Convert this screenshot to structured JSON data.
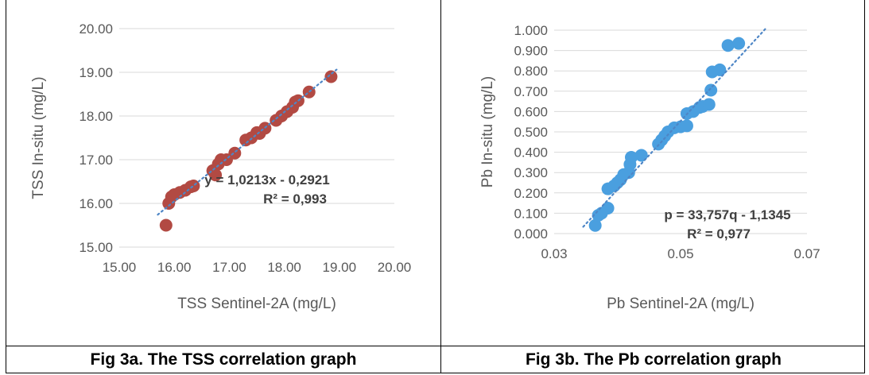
{
  "captions": {
    "a": "Fig 3a. The TSS correlation graph",
    "b": "Fig 3b. The Pb correlation graph"
  },
  "chart_data": [
    {
      "type": "scatter",
      "xlabel": "TSS Sentinel-2A (mg/L)",
      "ylabel": "TSS In-situ (mg/L)",
      "xlim": [
        15.0,
        20.0
      ],
      "ylim": [
        15.0,
        20.0
      ],
      "x_ticks": [
        "15.00",
        "16.00",
        "17.00",
        "18.00",
        "19.00",
        "20.00"
      ],
      "y_ticks": [
        "15.00",
        "16.00",
        "17.00",
        "18.00",
        "19.00",
        "20.00"
      ],
      "grid": "horizontal",
      "marker_color": "#b24a43",
      "trendline_color": "#4e86c6",
      "trendline": {
        "slope": 1.0213,
        "intercept": -0.2921,
        "x_range": [
          15.7,
          18.95
        ]
      },
      "equation_label": "y = 1,0213x - 0,2921",
      "r2_label": "R² = 0,993",
      "points": [
        {
          "x": 15.85,
          "y": 15.5
        },
        {
          "x": 15.9,
          "y": 16.0
        },
        {
          "x": 15.95,
          "y": 16.15
        },
        {
          "x": 16.0,
          "y": 16.2
        },
        {
          "x": 16.1,
          "y": 16.25
        },
        {
          "x": 16.2,
          "y": 16.3
        },
        {
          "x": 16.3,
          "y": 16.38
        },
        {
          "x": 16.35,
          "y": 16.4
        },
        {
          "x": 16.7,
          "y": 16.75
        },
        {
          "x": 16.75,
          "y": 16.65
        },
        {
          "x": 16.8,
          "y": 16.9
        },
        {
          "x": 16.85,
          "y": 17.0
        },
        {
          "x": 16.95,
          "y": 17.0
        },
        {
          "x": 17.1,
          "y": 17.15
        },
        {
          "x": 17.3,
          "y": 17.45
        },
        {
          "x": 17.4,
          "y": 17.5
        },
        {
          "x": 17.5,
          "y": 17.62
        },
        {
          "x": 17.55,
          "y": 17.6
        },
        {
          "x": 17.65,
          "y": 17.72
        },
        {
          "x": 17.85,
          "y": 17.9
        },
        {
          "x": 17.95,
          "y": 18.0
        },
        {
          "x": 18.05,
          "y": 18.1
        },
        {
          "x": 18.15,
          "y": 18.2
        },
        {
          "x": 18.2,
          "y": 18.32
        },
        {
          "x": 18.25,
          "y": 18.35
        },
        {
          "x": 18.45,
          "y": 18.55
        },
        {
          "x": 18.85,
          "y": 18.9
        }
      ]
    },
    {
      "type": "scatter",
      "xlabel": "Pb Sentinel-2A (mg/L)",
      "ylabel": "Pb In-situ (mg/L)",
      "xlim": [
        0.03,
        0.07
      ],
      "ylim": [
        0.0,
        1.0
      ],
      "x_ticks": [
        "0.03",
        "0.05",
        "0.07"
      ],
      "y_ticks": [
        "0.000",
        "0.100",
        "0.200",
        "0.300",
        "0.400",
        "0.500",
        "0.600",
        "0.700",
        "0.800",
        "0.900",
        "1.000"
      ],
      "grid": "horizontal",
      "marker_color": "#4a9fdf",
      "trendline_color": "#4e86c6",
      "trendline": {
        "slope": 33.757,
        "intercept": -1.1345,
        "x_range": [
          0.0346,
          0.0635
        ]
      },
      "equation_label": "p = 33,757q - 1,1345",
      "r2_label": "R² = 0,977",
      "points": [
        {
          "x": 0.0365,
          "y": 0.04
        },
        {
          "x": 0.037,
          "y": 0.09
        },
        {
          "x": 0.0375,
          "y": 0.1
        },
        {
          "x": 0.0385,
          "y": 0.125
        },
        {
          "x": 0.0385,
          "y": 0.22
        },
        {
          "x": 0.0395,
          "y": 0.235
        },
        {
          "x": 0.04,
          "y": 0.25
        },
        {
          "x": 0.0405,
          "y": 0.265
        },
        {
          "x": 0.041,
          "y": 0.29
        },
        {
          "x": 0.0418,
          "y": 0.3
        },
        {
          "x": 0.042,
          "y": 0.34
        },
        {
          "x": 0.0422,
          "y": 0.375
        },
        {
          "x": 0.0438,
          "y": 0.385
        },
        {
          "x": 0.0465,
          "y": 0.44
        },
        {
          "x": 0.047,
          "y": 0.46
        },
        {
          "x": 0.0475,
          "y": 0.48
        },
        {
          "x": 0.048,
          "y": 0.5
        },
        {
          "x": 0.049,
          "y": 0.52
        },
        {
          "x": 0.05,
          "y": 0.525
        },
        {
          "x": 0.051,
          "y": 0.53
        },
        {
          "x": 0.051,
          "y": 0.59
        },
        {
          "x": 0.052,
          "y": 0.6
        },
        {
          "x": 0.053,
          "y": 0.62
        },
        {
          "x": 0.0535,
          "y": 0.625
        },
        {
          "x": 0.0545,
          "y": 0.635
        },
        {
          "x": 0.0548,
          "y": 0.705
        },
        {
          "x": 0.055,
          "y": 0.795
        },
        {
          "x": 0.0562,
          "y": 0.805
        },
        {
          "x": 0.0575,
          "y": 0.925
        },
        {
          "x": 0.0592,
          "y": 0.935
        }
      ]
    }
  ]
}
